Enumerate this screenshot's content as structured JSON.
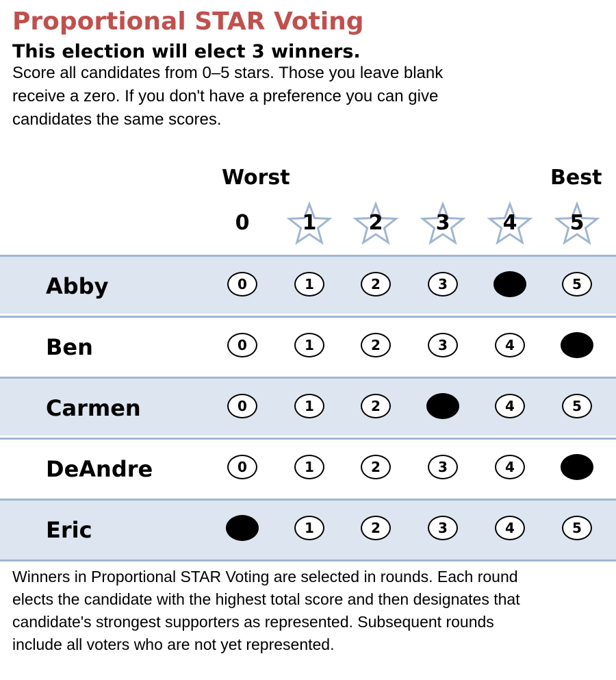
{
  "title": "Proportional STAR Voting",
  "subtitle": "This election will elect 3 winners.",
  "instructions": "Score all candidates from 0–5 stars. Those you leave blank receive a zero. If you don't have a preference you can give candidates the same scores.",
  "scale": {
    "worst_label": "Worst",
    "best_label": "Best"
  },
  "score_headers": [
    "0",
    "1",
    "2",
    "3",
    "4",
    "5"
  ],
  "candidates": [
    {
      "name": "Abby",
      "selected_score": 4
    },
    {
      "name": "Ben",
      "selected_score": 5
    },
    {
      "name": "Carmen",
      "selected_score": 3
    },
    {
      "name": "DeAndre",
      "selected_score": 5
    },
    {
      "name": "Eric",
      "selected_score": 0
    }
  ],
  "footer": "Winners in Proportional STAR Voting are selected in rounds. Each round elects the candidate with the highest total score and then designates that candidate's strongest supporters as represented. Subsequent rounds include all voters who are not yet represented.",
  "colors": {
    "title": "#c0504d",
    "row_shade": "#dce5f0",
    "row_divider": "#9fb6d1",
    "star_outline": "#9fb6d1",
    "selected_fill": "#000000"
  },
  "icons": {
    "score_header": "star-outline-icon"
  }
}
